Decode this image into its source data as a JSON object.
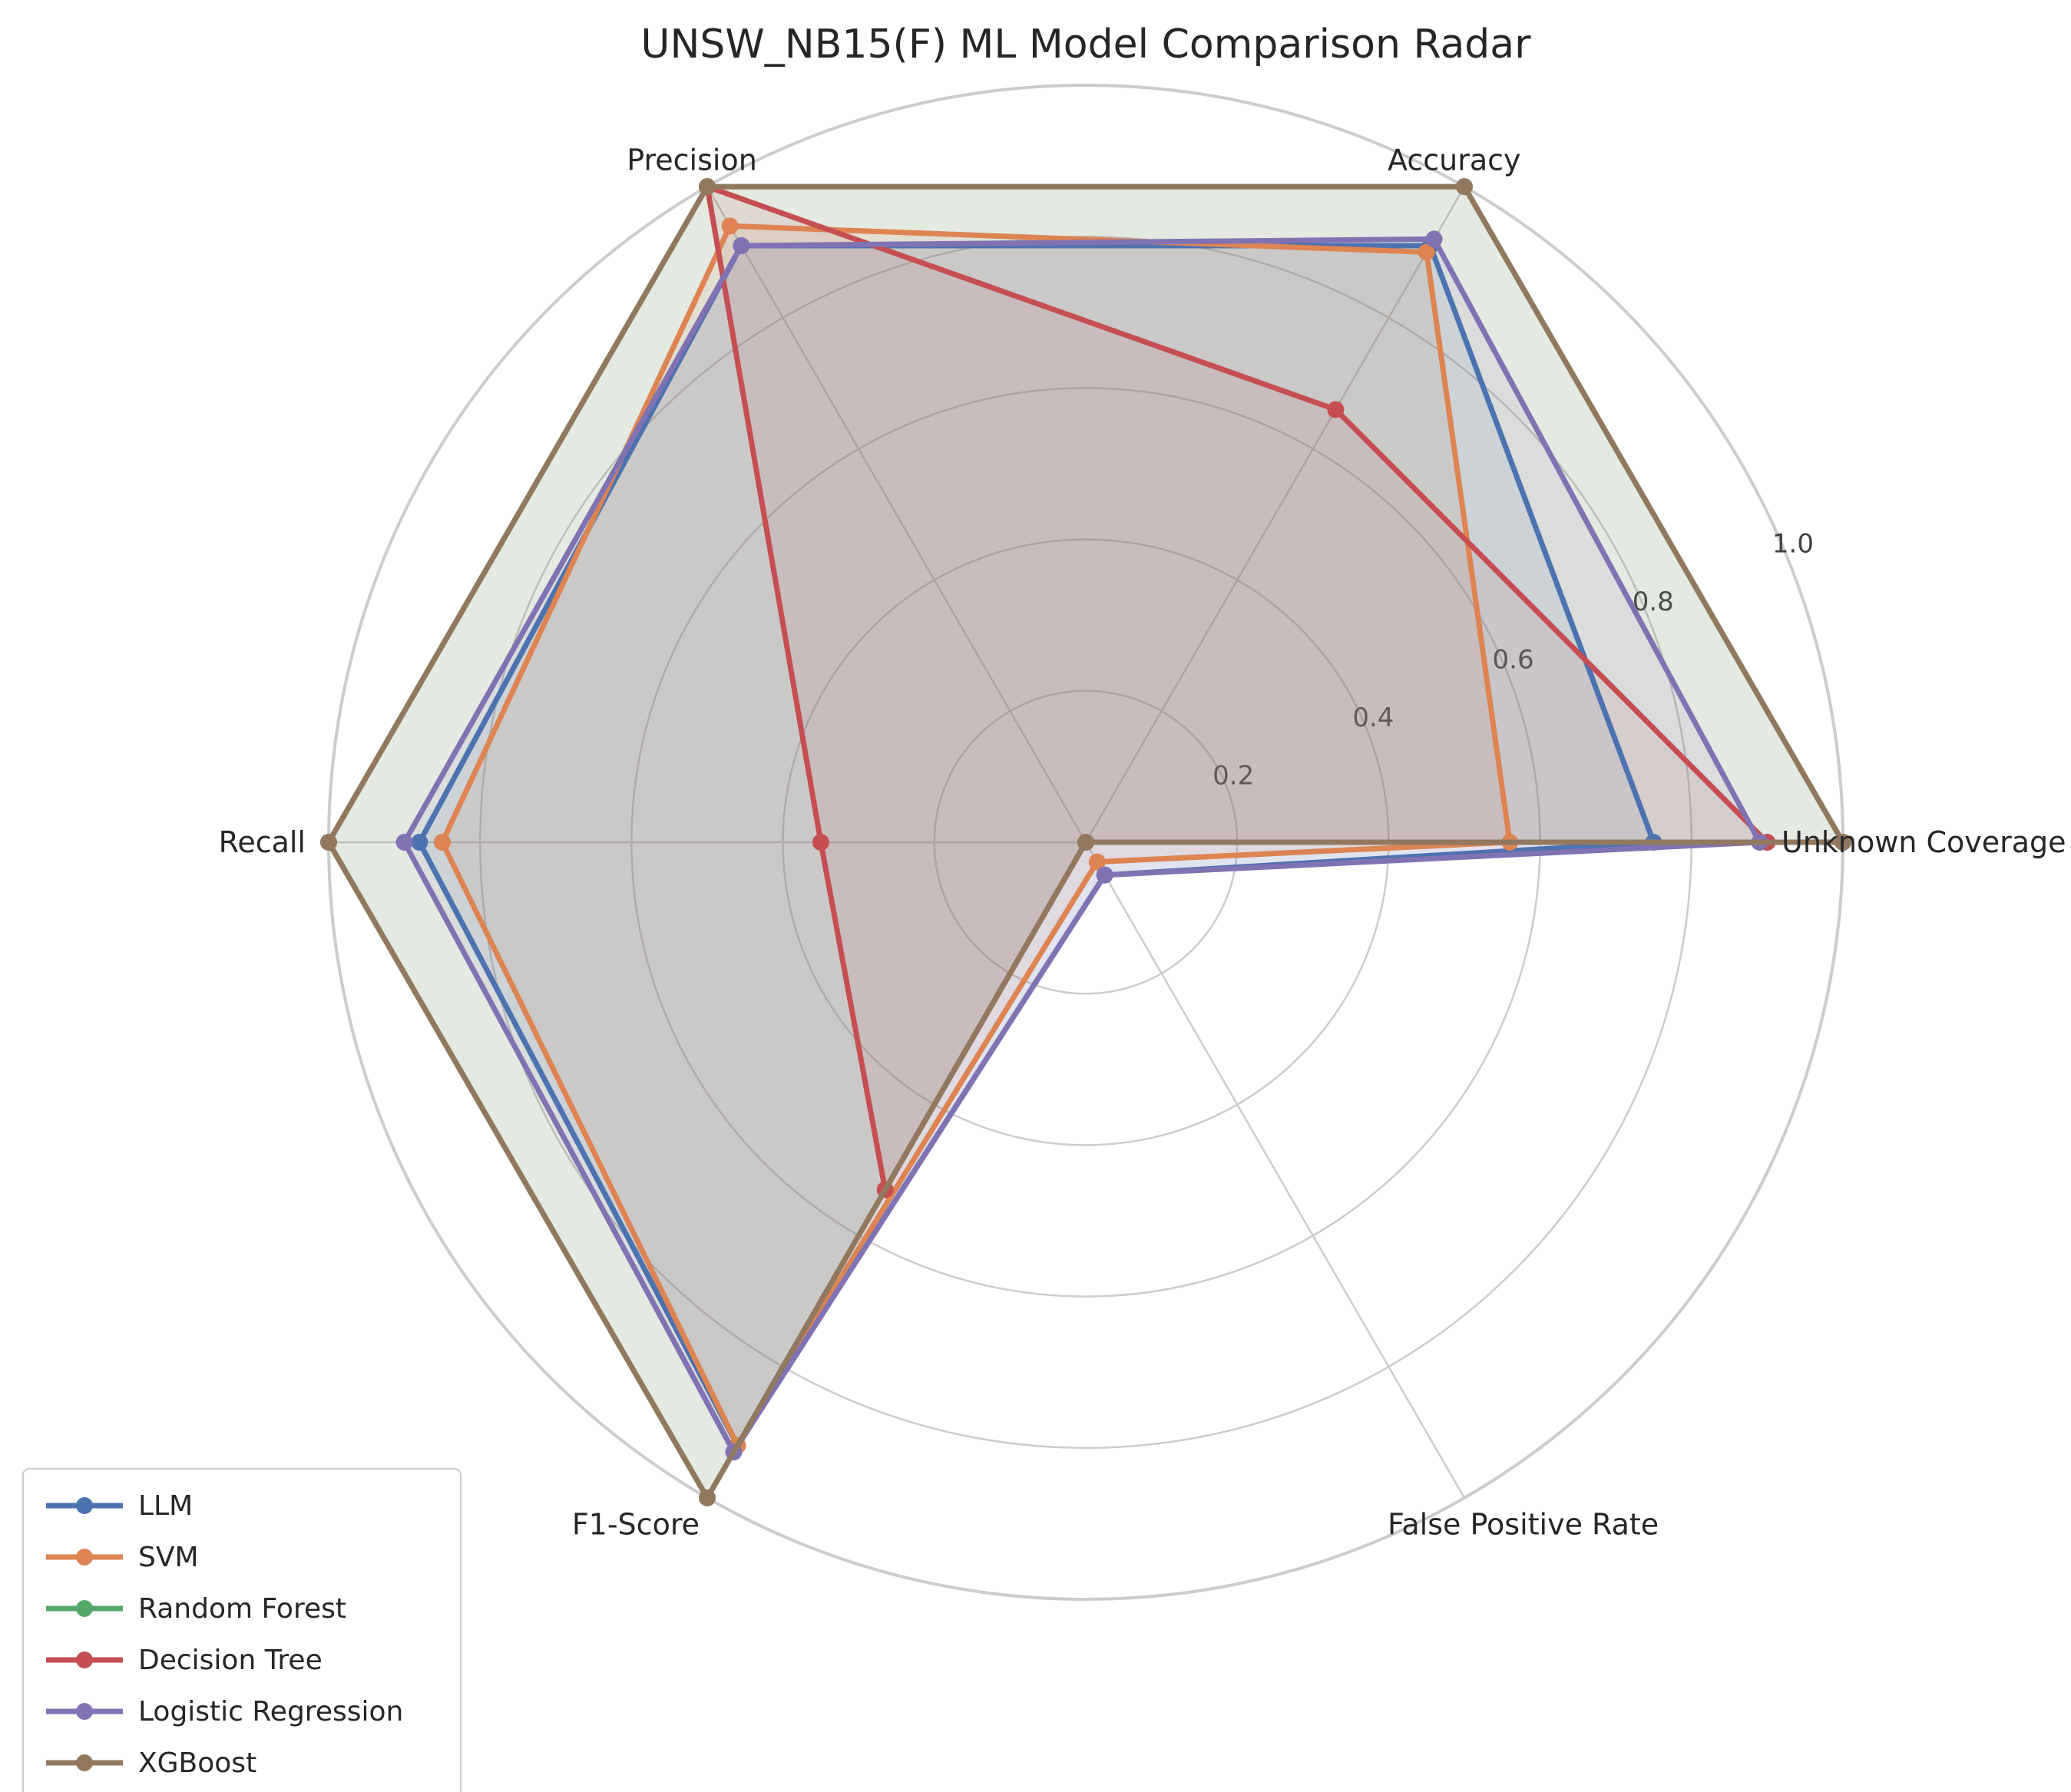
{
  "chart_data": {
    "type": "radar",
    "title": "UNSW_NB15(F) ML Model Comparison Radar",
    "axes": [
      "Unknown Coverage",
      "Accuracy",
      "Precision",
      "Recall",
      "F1-Score",
      "False Positive Rate"
    ],
    "rlim": [
      0,
      1.0
    ],
    "r_ticks": [
      0.2,
      0.4,
      0.6,
      0.8,
      1.0
    ],
    "r_tick_labels": [
      "0.2",
      "0.4",
      "0.6",
      "0.8",
      "1.0"
    ],
    "grid": true,
    "legend_position": "lower-left",
    "series": [
      {
        "name": "LLM",
        "color": "#4c72b0",
        "values": [
          0.75,
          0.91,
          0.91,
          0.88,
          0.92,
          0.05
        ]
      },
      {
        "name": "SVM",
        "color": "#dd8452",
        "values": [
          0.56,
          0.9,
          0.94,
          0.85,
          0.92,
          0.03
        ]
      },
      {
        "name": "Random Forest",
        "color": "#55a868",
        "values": [
          1.0,
          1.0,
          1.0,
          1.0,
          1.0,
          0.0
        ]
      },
      {
        "name": "Decision Tree",
        "color": "#c44e52",
        "values": [
          0.9,
          0.66,
          1.0,
          0.35,
          0.53,
          0.0
        ]
      },
      {
        "name": "Logistic Regression",
        "color": "#8172b3",
        "values": [
          0.89,
          0.92,
          0.91,
          0.9,
          0.93,
          0.05
        ]
      },
      {
        "name": "XGBoost",
        "color": "#937860",
        "values": [
          1.0,
          1.0,
          1.0,
          1.0,
          1.0,
          0.0
        ]
      }
    ]
  }
}
